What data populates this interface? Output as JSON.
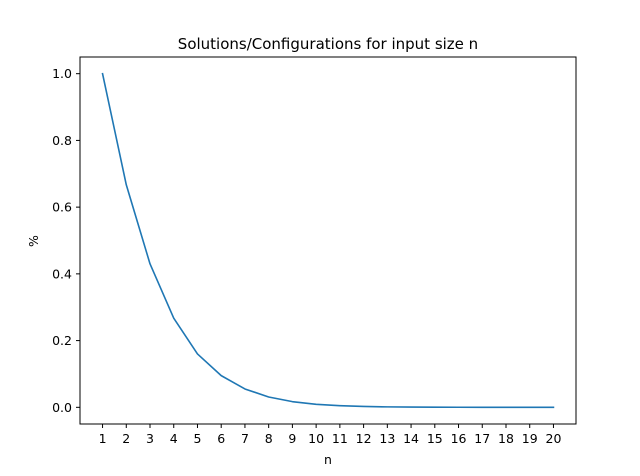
{
  "chart_data": {
    "type": "line",
    "title": "Solutions/Configurations for input size n",
    "xlabel": "n",
    "ylabel": "%",
    "x": [
      1,
      2,
      3,
      4,
      5,
      6,
      7,
      8,
      9,
      10,
      11,
      12,
      13,
      14,
      15,
      16,
      17,
      18,
      19,
      20
    ],
    "series": [
      {
        "color": "#1f77b4",
        "values": [
          1.0,
          0.667,
          0.43,
          0.267,
          0.16,
          0.095,
          0.055,
          0.031,
          0.017,
          0.009,
          0.005,
          0.0025,
          0.0013,
          0.0007,
          0.0004,
          0.0002,
          0.0001,
          5e-05,
          3e-05,
          1e-05
        ]
      }
    ],
    "xticks": [
      "1",
      "2",
      "3",
      "4",
      "5",
      "6",
      "7",
      "8",
      "9",
      "10",
      "11",
      "12",
      "13",
      "14",
      "15",
      "16",
      "17",
      "18",
      "19",
      "20"
    ],
    "yticks": [
      0.0,
      0.2,
      0.4,
      0.6,
      0.8,
      1.0
    ],
    "ytick_labels": [
      "0.0",
      "0.2",
      "0.4",
      "0.6",
      "0.8",
      "1.0"
    ],
    "xlim": [
      0.05,
      20.95
    ],
    "ylim": [
      -0.05,
      1.05
    ],
    "grid": false,
    "legend": false
  }
}
